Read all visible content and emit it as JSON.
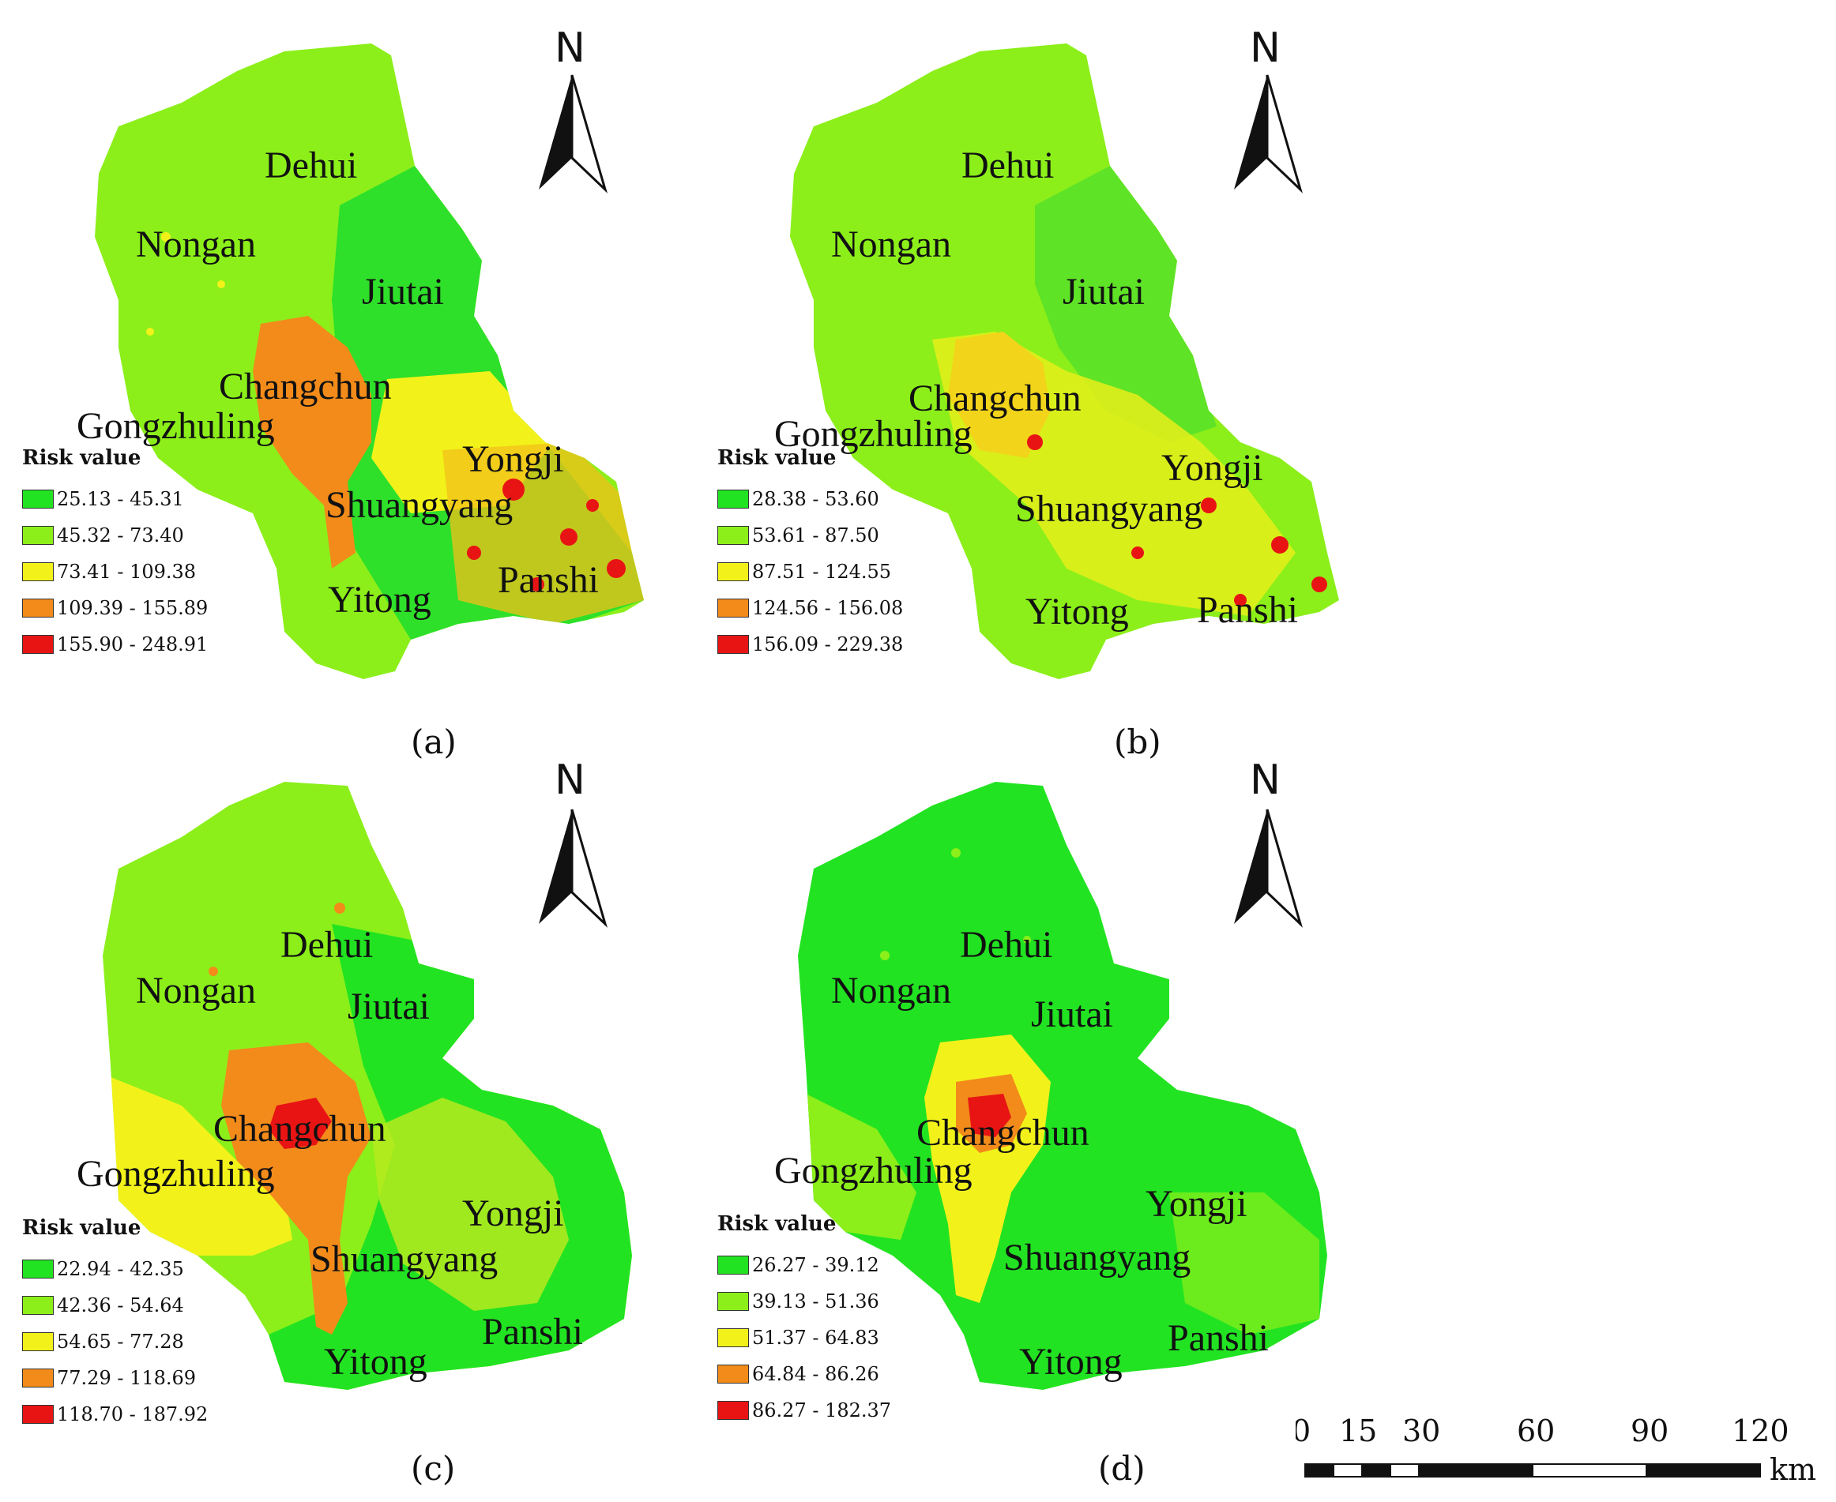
{
  "panels": [
    {
      "caption": "(a)",
      "north": "N",
      "legend_title": "Risk value",
      "legend": [
        {
          "label": "25.13 - 45.31",
          "color": "#22e322"
        },
        {
          "label": "45.32 - 73.40",
          "color": "#8cef1a"
        },
        {
          "label": "73.41 - 109.38",
          "color": "#f2f21a"
        },
        {
          "label": "109.39 - 155.89",
          "color": "#f28b1a"
        },
        {
          "label": "155.90 - 248.91",
          "color": "#e81414"
        }
      ],
      "places": {
        "dehui": "Dehui",
        "nongan": "Nongan",
        "jiutai": "Jiutai",
        "changchun": "Changchun",
        "gongzhuling": "Gongzhuling",
        "yongji": "Yongji",
        "shuangyang": "Shuangyang",
        "panshi": "Panshi",
        "yitong": "Yitong"
      }
    },
    {
      "caption": "(b)",
      "north": "N",
      "legend_title": "Risk value",
      "legend": [
        {
          "label": "28.38 - 53.60",
          "color": "#22e322"
        },
        {
          "label": "53.61 - 87.50",
          "color": "#8cef1a"
        },
        {
          "label": "87.51 - 124.55",
          "color": "#f2f21a"
        },
        {
          "label": "124.56 - 156.08",
          "color": "#f28b1a"
        },
        {
          "label": "156.09 - 229.38",
          "color": "#e81414"
        }
      ],
      "places": {
        "dehui": "Dehui",
        "nongan": "Nongan",
        "jiutai": "Jiutai",
        "changchun": "Changchun",
        "gongzhuling": "Gongzhuling",
        "yongji": "Yongji",
        "shuangyang": "Shuangyang",
        "panshi": "Panshi",
        "yitong": "Yitong"
      }
    },
    {
      "caption": "(c)",
      "north": "N",
      "legend_title": "Risk value",
      "legend": [
        {
          "label": "22.94 - 42.35",
          "color": "#22e322"
        },
        {
          "label": "42.36 - 54.64",
          "color": "#8cef1a"
        },
        {
          "label": "54.65 - 77.28",
          "color": "#f2f21a"
        },
        {
          "label": "77.29 - 118.69",
          "color": "#f28b1a"
        },
        {
          "label": "118.70 - 187.92",
          "color": "#e81414"
        }
      ],
      "places": {
        "dehui": "Dehui",
        "nongan": "Nongan",
        "jiutai": "Jiutai",
        "changchun": "Changchun",
        "gongzhuling": "Gongzhuling",
        "yongji": "Yongji",
        "shuangyang": "Shuangyang",
        "panshi": "Panshi",
        "yitong": "Yitong"
      }
    },
    {
      "caption": "(d)",
      "north": "N",
      "legend_title": "Risk value",
      "legend": [
        {
          "label": "26.27 - 39.12",
          "color": "#22e322"
        },
        {
          "label": "39.13 - 51.36",
          "color": "#8cef1a"
        },
        {
          "label": "51.37 - 64.83",
          "color": "#f2f21a"
        },
        {
          "label": "64.84 - 86.26",
          "color": "#f28b1a"
        },
        {
          "label": "86.27 - 182.37",
          "color": "#e81414"
        }
      ],
      "places": {
        "dehui": "Dehui",
        "nongan": "Nongan",
        "jiutai": "Jiutai",
        "changchun": "Changchun",
        "gongzhuling": "Gongzhuling",
        "yongji": "Yongji",
        "shuangyang": "Shuangyang",
        "panshi": "Panshi",
        "yitong": "Yitong"
      }
    }
  ],
  "scale_bar": {
    "ticks": [
      "0",
      "15",
      "30",
      "60",
      "90",
      "120"
    ],
    "unit": "km"
  }
}
